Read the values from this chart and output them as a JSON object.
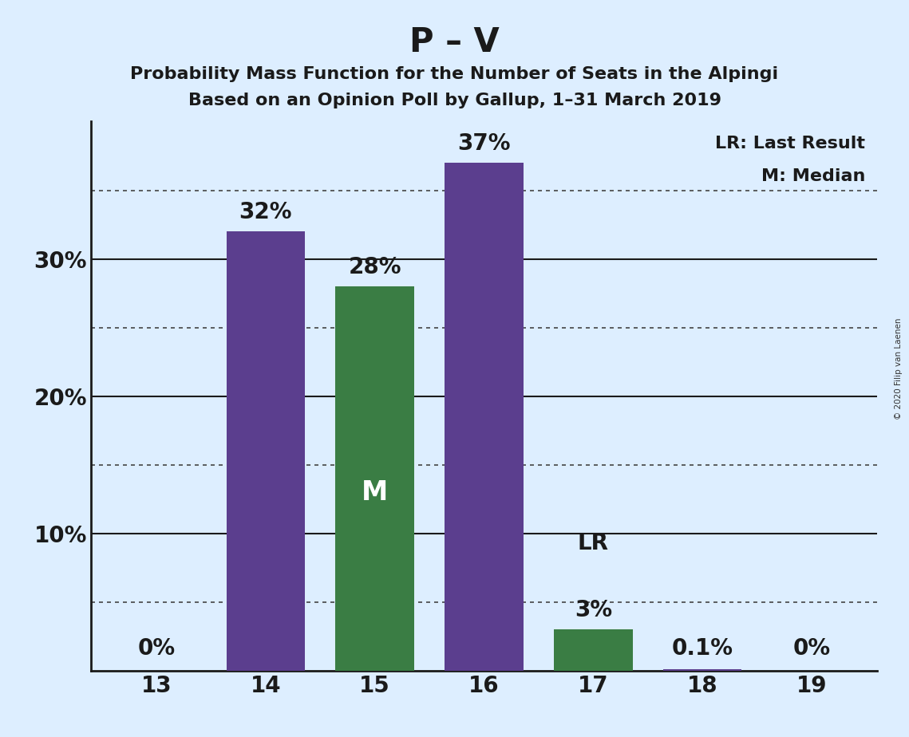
{
  "title": "P – V",
  "subtitle1": "Probability Mass Function for the Number of Seats in the Alpingi",
  "subtitle2": "Based on an Opinion Poll by Gallup, 1–31 March 2019",
  "copyright": "© 2020 Filip van Laenen",
  "categories": [
    13,
    14,
    15,
    16,
    17,
    18,
    19
  ],
  "values": [
    0.0,
    32.0,
    28.0,
    37.0,
    3.0,
    0.1,
    0.0
  ],
  "labels": [
    "0%",
    "32%",
    "28%",
    "37%",
    "3%",
    "0.1%",
    "0%"
  ],
  "bar_colors": [
    "#5b3e8e",
    "#5b3e8e",
    "#3a7d44",
    "#5b3e8e",
    "#3a7d44",
    "#5b3e8e",
    "#5b3e8e"
  ],
  "median_bar": 15,
  "lr_bar": 17,
  "background_color": "#ddeeff",
  "ylim": [
    0,
    40
  ],
  "solid_yticks": [
    10,
    20,
    30
  ],
  "dotted_yticks": [
    5,
    15,
    25,
    35
  ],
  "ytick_display": [
    10,
    20,
    30
  ],
  "ytick_labels_display": [
    "10%",
    "20%",
    "30%"
  ],
  "legend_lr": "LR: Last Result",
  "legend_m": "M: Median",
  "title_fontsize": 30,
  "subtitle_fontsize": 16,
  "label_fontsize": 20,
  "ytick_fontsize": 20,
  "xtick_fontsize": 20,
  "bar_width": 0.72
}
